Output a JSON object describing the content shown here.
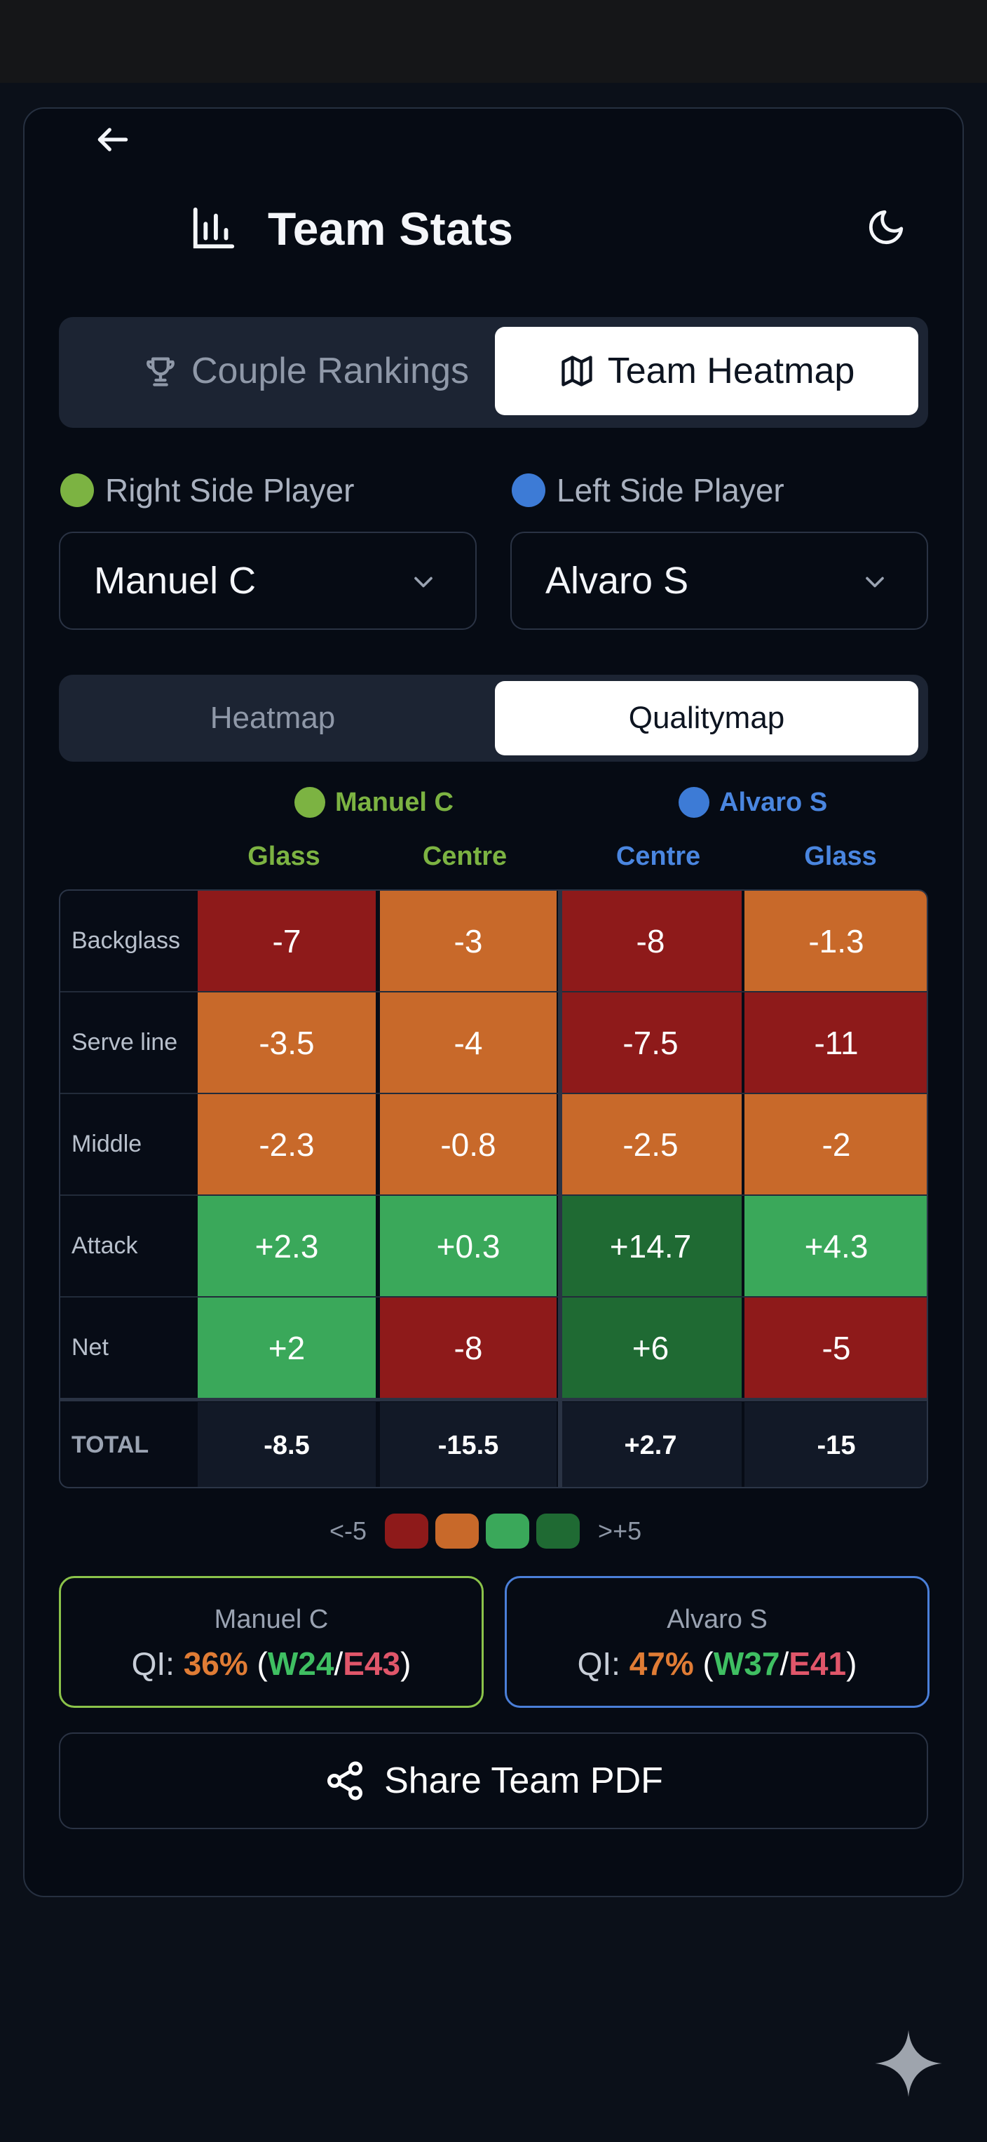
{
  "app": {
    "title": "Team Stats"
  },
  "main_tabs": [
    {
      "label": "Couple Rankings",
      "icon": "trophy-icon",
      "active": false
    },
    {
      "label": "Team Heatmap",
      "icon": "map-icon",
      "active": true
    }
  ],
  "players": {
    "right": {
      "label": "Right Side Player",
      "value": "Manuel C",
      "color": "#7cb342"
    },
    "left": {
      "label": "Left Side Player",
      "value": "Alvaro S",
      "color": "#3d7bd6"
    }
  },
  "view_tabs": [
    {
      "label": "Heatmap",
      "active": false
    },
    {
      "label": "Qualitymap",
      "active": true
    }
  ],
  "groups": [
    {
      "name": "Manuel C",
      "color": "#7cb342",
      "columns": [
        "Glass",
        "Centre"
      ]
    },
    {
      "name": "Alvaro S",
      "color": "#3d7bd6",
      "columns": [
        "Centre",
        "Glass"
      ]
    }
  ],
  "rows": [
    {
      "label": "Backglass",
      "values": [
        "-7",
        "-3",
        "-8",
        "-1.3"
      ]
    },
    {
      "label": "Serve line",
      "values": [
        "-3.5",
        "-4",
        "-7.5",
        "-11"
      ]
    },
    {
      "label": "Middle",
      "values": [
        "-2.3",
        "-0.8",
        "-2.5",
        "-2"
      ]
    },
    {
      "label": "Attack",
      "values": [
        "+2.3",
        "+0.3",
        "+14.7",
        "+4.3"
      ]
    },
    {
      "label": "Net",
      "values": [
        "+2",
        "-8",
        "+6",
        "-5"
      ]
    }
  ],
  "total": {
    "label": "TOTAL",
    "values": [
      "-8.5",
      "-15.5",
      "+2.7",
      "-15"
    ]
  },
  "legend": {
    "low": "<-5",
    "high": ">+5",
    "colors": [
      "#8e1a1a",
      "#c8692a",
      "#3aa85a",
      "#1f6a33"
    ]
  },
  "qi": [
    {
      "name": "Manuel C",
      "prefix": "QI:",
      "pct": "36%",
      "w": "W24",
      "e": "E43",
      "border": "#8bc34a"
    },
    {
      "name": "Alvaro S",
      "prefix": "QI:",
      "pct": "47%",
      "w": "W37",
      "e": "E41",
      "border": "#4a7fd8"
    }
  ],
  "share": {
    "label": "Share Team PDF"
  },
  "colors": {
    "very_bad": "#8e1a1a",
    "bad": "#c8692a",
    "good": "#3aa85a",
    "very_good": "#1f6a33"
  }
}
